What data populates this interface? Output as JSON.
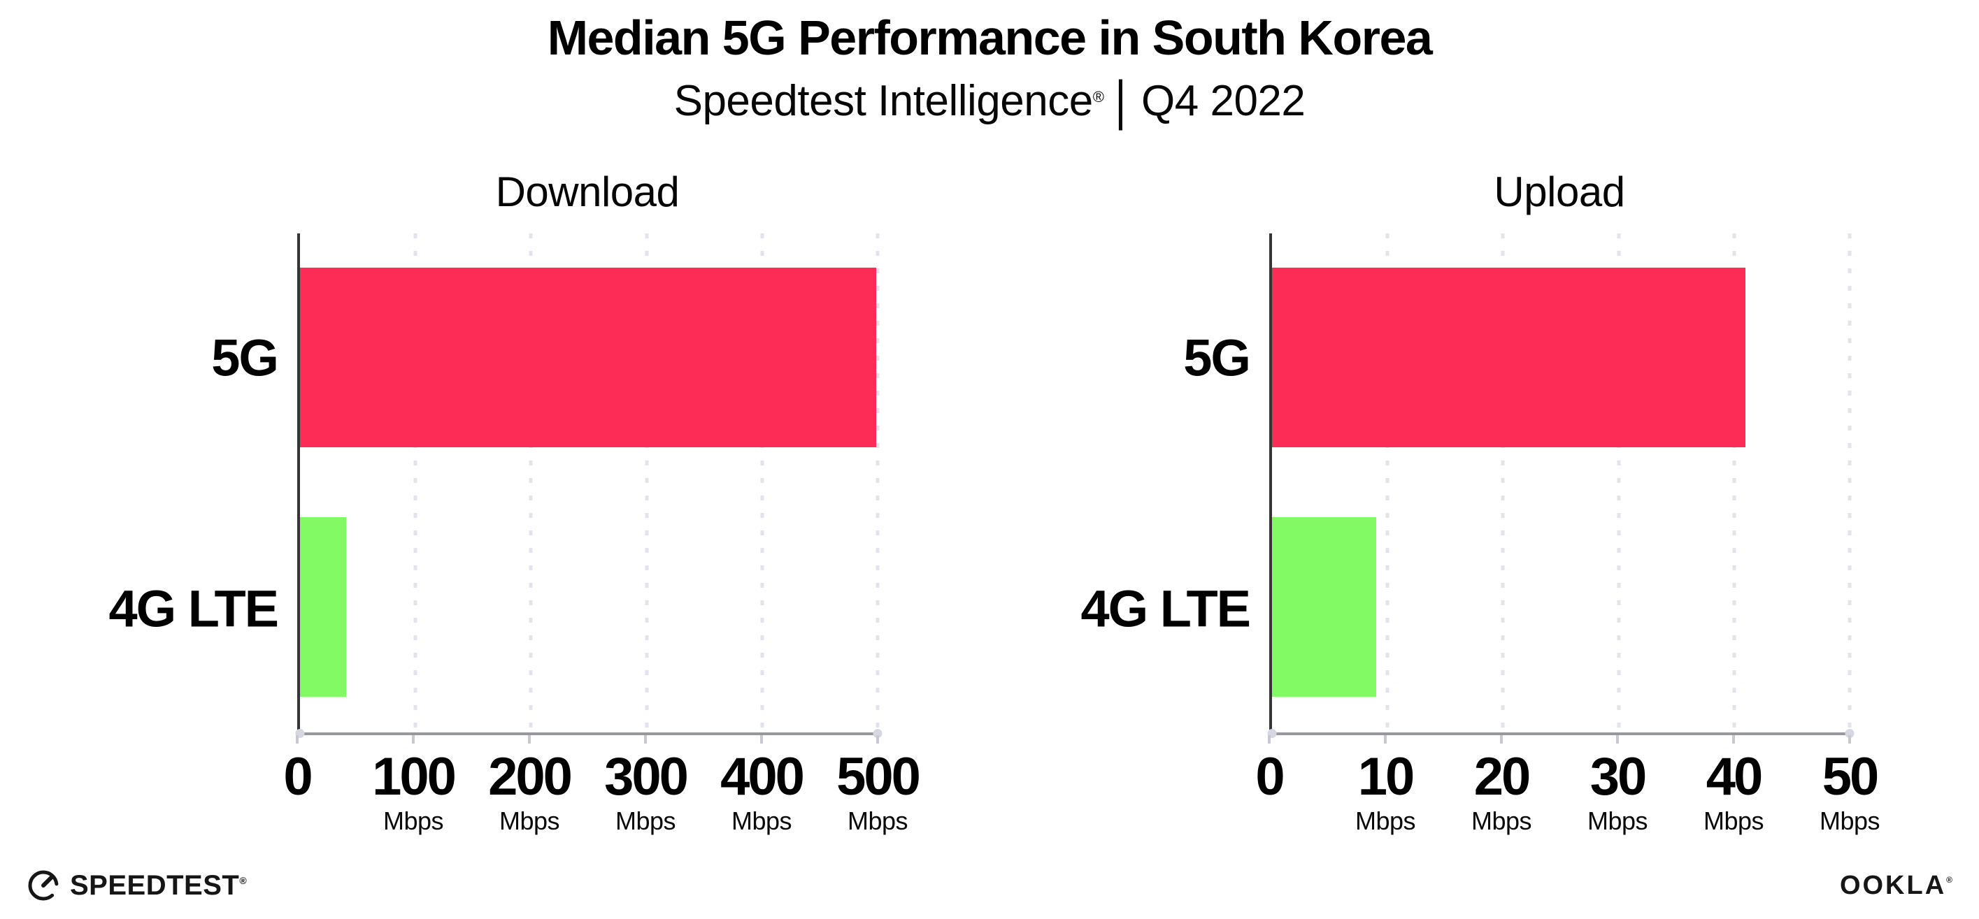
{
  "header": {
    "title": "Median 5G Performance in South Korea",
    "subtitle_brand": "Speedtest Intelligence",
    "subtitle_reg": "®",
    "subtitle_sep": "|",
    "subtitle_period": "Q4 2022"
  },
  "chart_data": [
    {
      "type": "bar",
      "orientation": "horizontal",
      "title": "Download",
      "categories": [
        "5G",
        "4G LTE"
      ],
      "values": [
        499,
        40
      ],
      "value_unit": "Mbps",
      "xlim": [
        0,
        500
      ],
      "xticks": [
        0,
        100,
        200,
        300,
        400,
        500
      ],
      "tick_unit": "Mbps",
      "bar_colors": [
        "#fc2c57",
        "#81fa63"
      ],
      "grid": "dotted-vertical",
      "legend": "none"
    },
    {
      "type": "bar",
      "orientation": "horizontal",
      "title": "Upload",
      "categories": [
        "5G",
        "4G LTE"
      ],
      "values": [
        41,
        9
      ],
      "value_unit": "Mbps",
      "xlim": [
        0,
        50
      ],
      "xticks": [
        0,
        10,
        20,
        30,
        40,
        50
      ],
      "tick_unit": "Mbps",
      "bar_colors": [
        "#fc2c57",
        "#81fa63"
      ],
      "grid": "dotted-vertical",
      "legend": "none"
    }
  ],
  "colors": {
    "bar_5g": "#fc2c57",
    "bar_4g_lte": "#81fa63",
    "gridline": "#e3e3ee",
    "y_axis": "#353538",
    "x_axis": "#97979e",
    "background": "#ffffff",
    "text": "#000000"
  },
  "footer": {
    "speedtest_label": "SPEEDTEST",
    "speedtest_reg": "®",
    "ookla_label": "OOKLA",
    "ookla_reg": "®"
  }
}
